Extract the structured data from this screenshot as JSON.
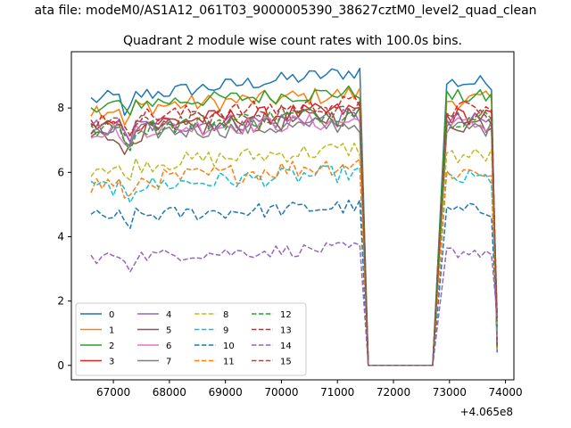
{
  "figure": {
    "suptitle": "ata file: modeM0/AS1A12_061T03_9000005390_38627cztM0_level2_quad_clean"
  },
  "chart_data": {
    "type": "line",
    "title": "Quadrant 2 module wise count rates with 100.0s bins.",
    "xlabel": "",
    "ylabel": "",
    "x_offset_label": "+4.065e8",
    "xlim": [
      66250,
      74150
    ],
    "ylim": [
      -0.45,
      9.75
    ],
    "x_ticks": [
      67000,
      68000,
      69000,
      70000,
      71000,
      72000,
      73000,
      74000
    ],
    "y_ticks": [
      0,
      2,
      4,
      6,
      8
    ],
    "legend": {
      "position": "lower-left",
      "ncol": 4
    },
    "segments": [
      {
        "x_start": 66600,
        "x_end": 71450,
        "step": 100
      },
      {
        "x_start": 72950,
        "x_end": 73850,
        "step": 100
      }
    ],
    "gap": {
      "x": [
        71550,
        72700
      ],
      "value": 0
    },
    "series": [
      {
        "name": "0",
        "color": "#1f77b4",
        "dash": "solid",
        "base": 8.25,
        "slope": 0.9,
        "amp": 0.3
      },
      {
        "name": "1",
        "color": "#ff7f0e",
        "dash": "solid",
        "base": 7.95,
        "slope": 0.5,
        "amp": 0.35
      },
      {
        "name": "2",
        "color": "#2ca02c",
        "dash": "solid",
        "base": 8.1,
        "slope": 0.4,
        "amp": 0.3
      },
      {
        "name": "3",
        "color": "#d62728",
        "dash": "solid",
        "base": 7.45,
        "slope": 0.5,
        "amp": 0.35
      },
      {
        "name": "4",
        "color": "#9467bd",
        "dash": "solid",
        "base": 7.4,
        "slope": 0.3,
        "amp": 0.35
      },
      {
        "name": "5",
        "color": "#8c564b",
        "dash": "solid",
        "base": 7.1,
        "slope": 0.7,
        "amp": 0.4
      },
      {
        "name": "6",
        "color": "#e377c2",
        "dash": "solid",
        "base": 7.3,
        "slope": 0.3,
        "amp": 0.35
      },
      {
        "name": "7",
        "color": "#7f7f7f",
        "dash": "solid",
        "base": 7.2,
        "slope": 0.3,
        "amp": 0.35
      },
      {
        "name": "8",
        "color": "#bcbd22",
        "dash": "dashed",
        "base": 6.15,
        "slope": 0.6,
        "amp": 0.35
      },
      {
        "name": "9",
        "color": "#17becf",
        "dash": "dashed",
        "base": 5.5,
        "slope": 0.5,
        "amp": 0.35
      },
      {
        "name": "10",
        "color": "#1f77b4",
        "dash": "dashed",
        "base": 4.6,
        "slope": 0.35,
        "amp": 0.3
      },
      {
        "name": "11",
        "color": "#ff7f0e",
        "dash": "dashed",
        "base": 5.6,
        "slope": 0.7,
        "amp": 0.4
      },
      {
        "name": "12",
        "color": "#2ca02c",
        "dash": "dashed",
        "base": 7.3,
        "slope": 0.6,
        "amp": 0.35
      },
      {
        "name": "13",
        "color": "#d62728",
        "dash": "dashed",
        "base": 7.65,
        "slope": 0.5,
        "amp": 0.35
      },
      {
        "name": "14",
        "color": "#9467bd",
        "dash": "dashed",
        "base": 3.35,
        "slope": 0.3,
        "amp": 0.25
      },
      {
        "name": "15",
        "color": "#8c564b",
        "dash": "dashed",
        "base": 7.4,
        "slope": 0.6,
        "amp": 0.35
      }
    ]
  }
}
